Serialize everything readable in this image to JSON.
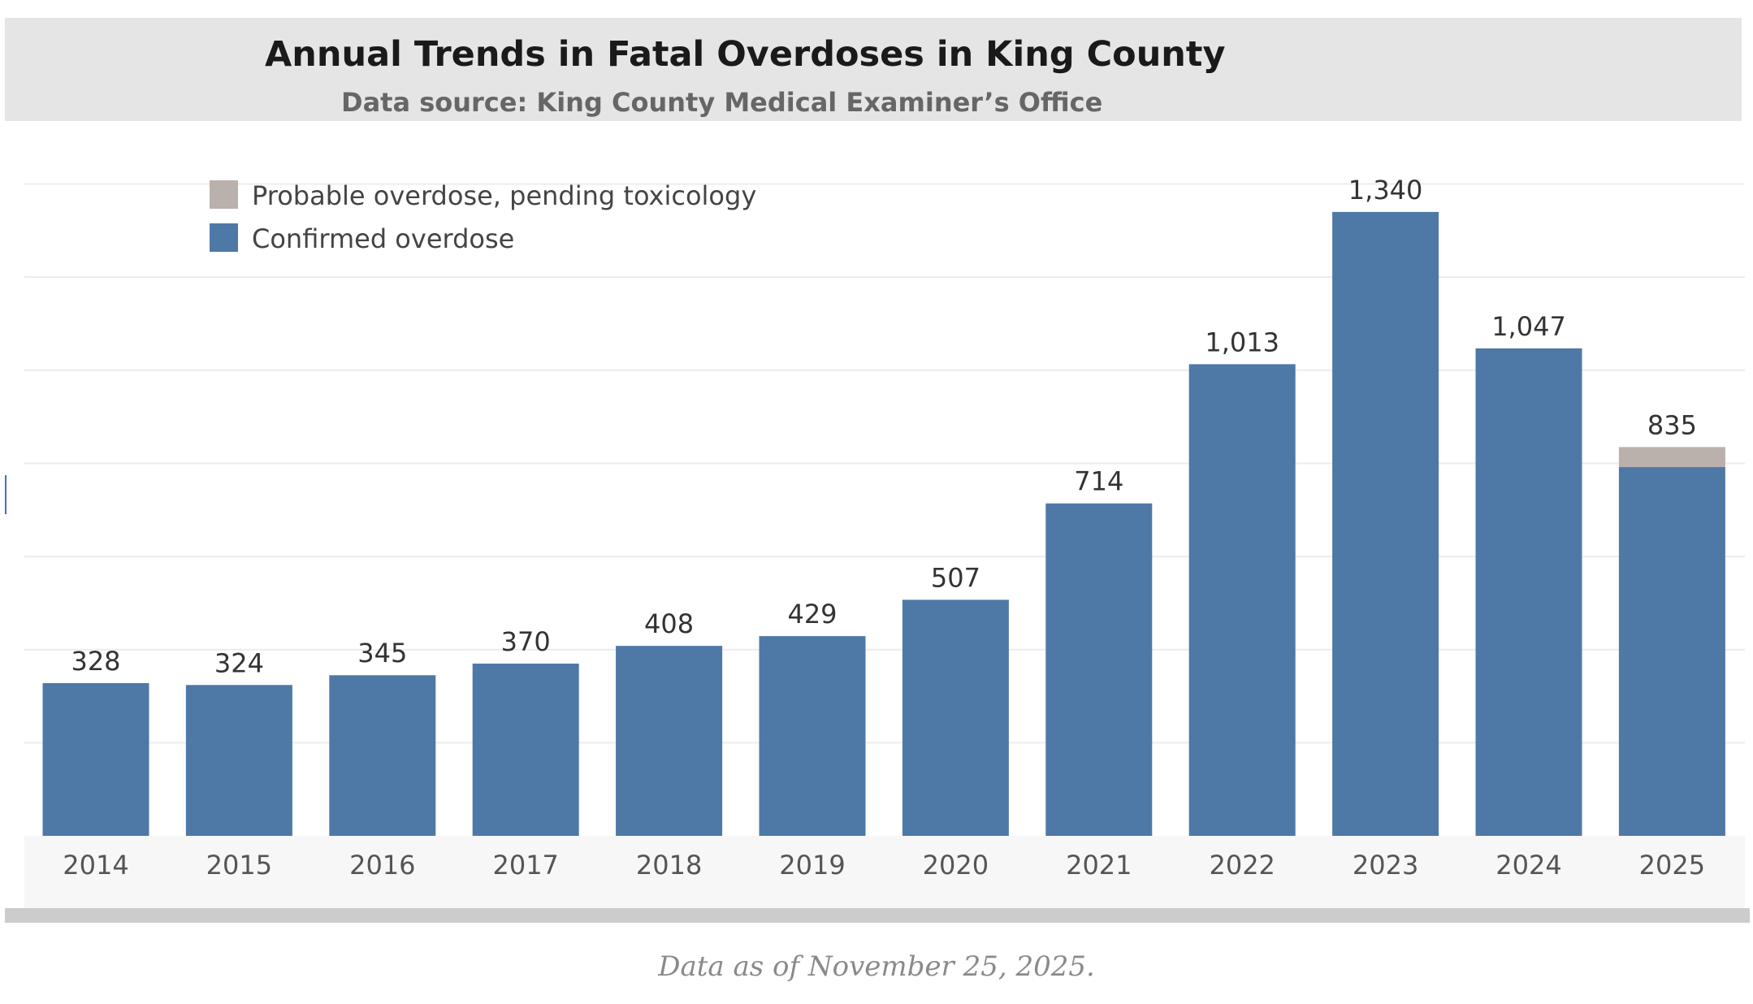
{
  "header": {
    "title": "Annual Trends in Fatal Overdoses in King County",
    "subtitle": "Data source: King County Medical Examiner’s Office"
  },
  "footnote": "Data as of November 25, 2025.",
  "colors": {
    "confirmed": "#4e79a7",
    "probable": "#bab0ac",
    "header_band": "#e5e5e5",
    "gridline": "#ececec"
  },
  "chart_data": {
    "type": "bar",
    "stacked": true,
    "title": "Annual Trends in Fatal Overdoses in King County",
    "subtitle": "Data source: King County Medical Examiner’s Office",
    "categories": [
      "2014",
      "2015",
      "2016",
      "2017",
      "2018",
      "2019",
      "2020",
      "2021",
      "2022",
      "2023",
      "2024",
      "2025"
    ],
    "series": [
      {
        "name": "Confirmed overdose",
        "color": "#4e79a7",
        "values": [
          328,
          324,
          345,
          370,
          408,
          429,
          507,
          714,
          1013,
          1340,
          1047,
          792
        ]
      },
      {
        "name": "Probable overdose, pending toxicology",
        "color": "#bab0ac",
        "values": [
          0,
          0,
          0,
          0,
          0,
          0,
          0,
          0,
          0,
          0,
          0,
          43
        ]
      }
    ],
    "totals": [
      328,
      324,
      345,
      370,
      408,
      429,
      507,
      714,
      1013,
      1340,
      1047,
      835
    ],
    "total_labels": [
      "328",
      "324",
      "345",
      "370",
      "408",
      "429",
      "507",
      "714",
      "1,013",
      "1,340",
      "1,047",
      "835"
    ],
    "legend": [
      {
        "label": "Probable overdose, pending toxicology",
        "color": "#bab0ac"
      },
      {
        "label": "Confirmed overdose",
        "color": "#4e79a7"
      }
    ],
    "legend_position": "top-left",
    "ylim": [
      0,
      1400
    ],
    "grid": true,
    "xlabel": "",
    "ylabel": ""
  }
}
